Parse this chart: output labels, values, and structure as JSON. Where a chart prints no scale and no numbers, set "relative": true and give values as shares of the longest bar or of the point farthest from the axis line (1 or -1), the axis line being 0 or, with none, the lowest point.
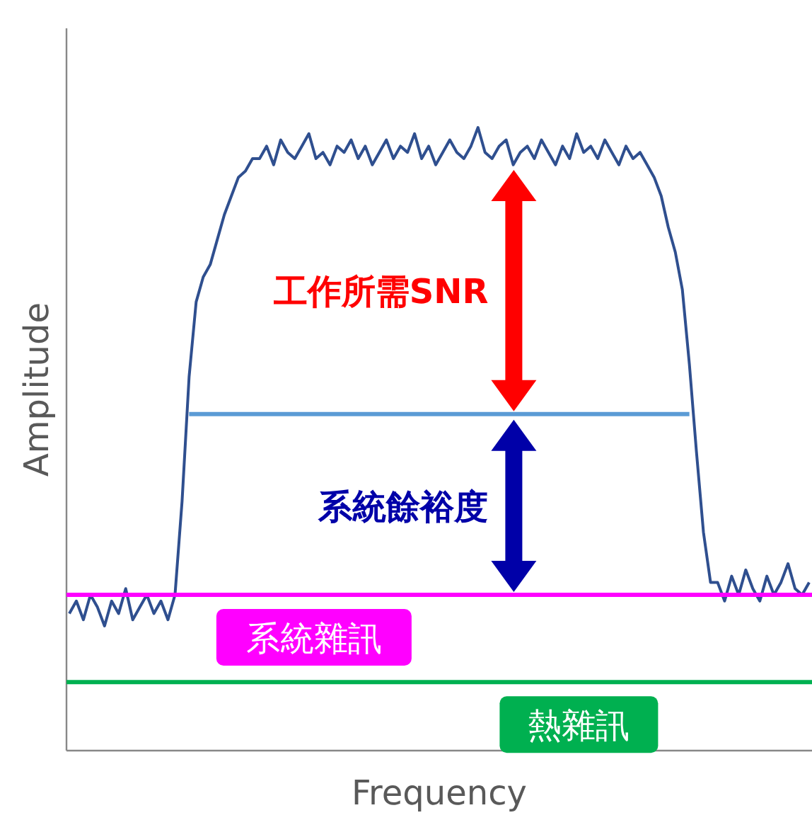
{
  "chart_data": {
    "type": "line",
    "relative": true,
    "xlabel": "Frequency",
    "ylabel": "Amplitude",
    "categories": [
      null,
      null,
      null,
      null,
      null,
      null,
      null,
      null,
      null,
      null,
      null,
      null,
      null,
      null,
      null,
      null,
      null,
      null,
      null,
      null,
      null,
      null,
      null,
      null,
      null,
      null,
      null,
      null,
      null,
      null,
      null,
      null,
      null,
      null,
      null,
      null,
      null,
      null,
      null,
      null,
      null,
      null,
      null,
      null,
      null,
      null,
      null,
      null,
      null,
      null,
      null,
      null,
      null,
      null,
      null,
      null,
      null,
      null,
      null,
      null,
      null,
      null,
      null,
      null,
      null,
      null,
      null,
      null,
      null,
      null,
      null,
      null,
      null,
      null,
      null,
      null,
      null,
      null,
      null,
      null,
      null,
      null,
      null,
      null,
      null,
      null,
      null,
      null,
      null,
      null,
      null,
      null,
      null,
      null,
      null,
      null,
      null,
      null,
      null,
      null,
      null,
      null,
      null,
      null,
      null,
      null
    ],
    "series": [
      {
        "color": "#2f4f8f",
        "values": [
          0.22,
          0.24,
          0.21,
          0.25,
          0.23,
          0.2,
          0.24,
          0.22,
          0.26,
          0.21,
          0.23,
          0.25,
          0.22,
          0.24,
          0.21,
          0.25,
          0.4,
          0.6,
          0.72,
          0.76,
          0.78,
          0.82,
          0.86,
          0.89,
          0.92,
          0.93,
          0.95,
          0.95,
          0.97,
          0.94,
          0.98,
          0.96,
          0.95,
          0.97,
          0.99,
          0.95,
          0.96,
          0.94,
          0.97,
          0.96,
          0.98,
          0.95,
          0.97,
          0.94,
          0.96,
          0.98,
          0.95,
          0.97,
          0.96,
          0.99,
          0.95,
          0.97,
          0.94,
          0.96,
          0.98,
          0.96,
          0.95,
          0.97,
          1.0,
          0.96,
          0.95,
          0.97,
          0.98,
          0.94,
          0.96,
          0.97,
          0.95,
          0.98,
          0.96,
          0.94,
          0.97,
          0.95,
          0.99,
          0.96,
          0.97,
          0.95,
          0.98,
          0.96,
          0.94,
          0.97,
          0.95,
          0.96,
          0.94,
          0.92,
          0.89,
          0.84,
          0.8,
          0.74,
          0.62,
          0.48,
          0.35,
          0.27,
          0.27,
          0.24,
          0.28,
          0.25,
          0.29,
          0.26,
          0.24,
          0.28,
          0.25,
          0.27,
          0.3,
          0.26,
          0.25,
          0.27
        ]
      }
    ],
    "ref_lines": [
      {
        "axis": "y",
        "value": 0.25,
        "label": "系統雜訊",
        "color": "#ff00ff"
      },
      {
        "axis": "y",
        "value": 0.11,
        "label": "熱雜訊",
        "color": "#00b050"
      },
      {
        "axis": "y",
        "value": 0.54,
        "color": "#5b9bd5"
      }
    ],
    "annotations": [
      "工作所需SNR",
      "系統餘裕度"
    ]
  }
}
